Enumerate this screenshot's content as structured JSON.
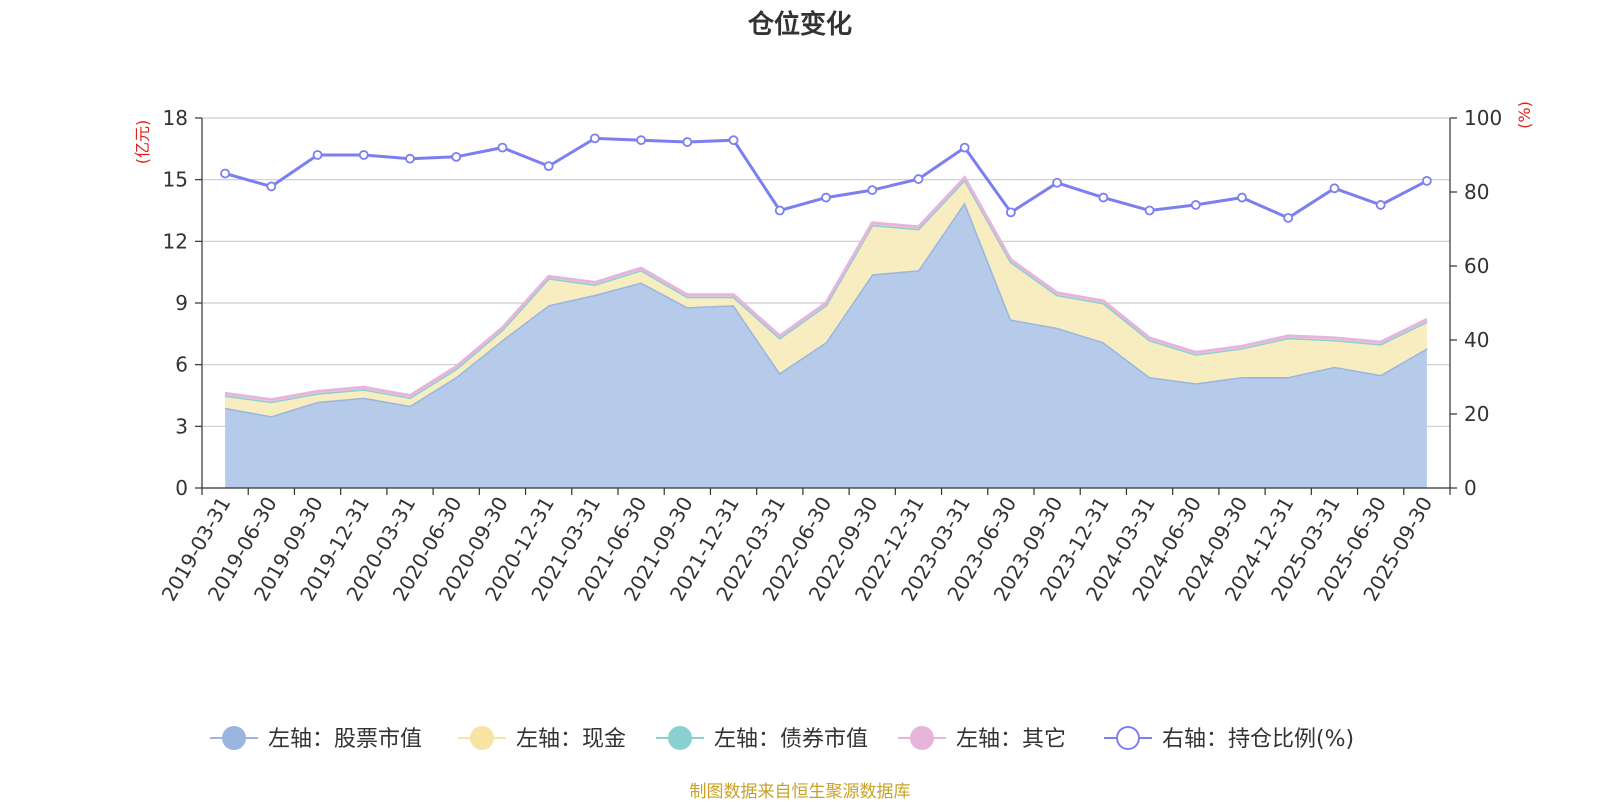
{
  "title": "仓位变化",
  "source_note": "制图数据来自恒生聚源数据库",
  "chart_data": {
    "type": "area",
    "categories": [
      "2019-03-31",
      "2019-06-30",
      "2019-09-30",
      "2019-12-31",
      "2020-03-31",
      "2020-06-30",
      "2020-09-30",
      "2020-12-31",
      "2021-03-31",
      "2021-06-30",
      "2021-09-30",
      "2021-12-31",
      "2022-03-31",
      "2022-06-30",
      "2022-09-30",
      "2022-12-31",
      "2023-03-31",
      "2023-06-30",
      "2023-09-30",
      "2023-12-31",
      "2024-03-31",
      "2024-06-30",
      "2024-09-30",
      "2024-12-31",
      "2025-03-31",
      "2025-06-30",
      "2025-09-30"
    ],
    "left_axis": {
      "label": "(亿元)",
      "ylim": [
        0,
        18
      ],
      "ticks": [
        0,
        3,
        6,
        9,
        12,
        15,
        18
      ]
    },
    "right_axis": {
      "label": "(%)",
      "ylim": [
        0,
        100
      ],
      "ticks": [
        0,
        20,
        40,
        60,
        80,
        100
      ]
    },
    "grid": true,
    "legend_position": "bottom",
    "series": [
      {
        "name": "左轴：股票市值",
        "axis": "left",
        "kind": "stacked-area",
        "color": "#9ab5e0",
        "fill": "#b6cbea",
        "values": [
          3.9,
          3.5,
          4.2,
          4.4,
          4.0,
          5.4,
          7.2,
          8.9,
          9.4,
          10.0,
          8.8,
          8.9,
          5.6,
          7.1,
          10.4,
          10.6,
          13.9,
          8.2,
          7.8,
          7.1,
          5.4,
          5.1,
          5.4,
          5.4,
          5.9,
          5.5,
          6.8
        ]
      },
      {
        "name": "左轴：现金",
        "axis": "left",
        "kind": "stacked-area",
        "color": "#f7e3a3",
        "fill": "#f8edc0",
        "values": [
          0.6,
          0.7,
          0.4,
          0.4,
          0.4,
          0.4,
          0.5,
          1.3,
          0.5,
          0.6,
          0.5,
          0.4,
          1.7,
          1.8,
          2.4,
          2.0,
          1.1,
          2.8,
          1.6,
          1.9,
          1.8,
          1.4,
          1.4,
          1.9,
          1.3,
          1.5,
          1.3
        ]
      },
      {
        "name": "左轴：债券市值",
        "axis": "left",
        "kind": "stacked-area",
        "color": "#8ad0d0",
        "fill": "#a8dede",
        "values": [
          0,
          0,
          0,
          0,
          0,
          0,
          0,
          0,
          0,
          0,
          0,
          0,
          0,
          0,
          0,
          0,
          0,
          0,
          0,
          0,
          0,
          0,
          0,
          0,
          0,
          0,
          0
        ]
      },
      {
        "name": "左轴：其它",
        "axis": "left",
        "kind": "stacked-area",
        "color": "#e7b5dc",
        "fill": "#f0cde8",
        "values": [
          0.1,
          0.1,
          0.1,
          0.1,
          0.1,
          0.1,
          0.1,
          0.1,
          0.1,
          0.1,
          0.1,
          0.1,
          0.1,
          0.1,
          0.1,
          0.1,
          0.1,
          0.1,
          0.1,
          0.1,
          0.1,
          0.1,
          0.1,
          0.1,
          0.1,
          0.1,
          0.1
        ]
      },
      {
        "name": "右轴：持仓比例(%)",
        "axis": "right",
        "kind": "line",
        "color": "#7b7ff0",
        "values": [
          85,
          81.5,
          90,
          90,
          89,
          89.5,
          92,
          87,
          94.5,
          94,
          93.5,
          94,
          75,
          78.5,
          80.5,
          83.5,
          92,
          74.5,
          82.5,
          78.5,
          75,
          76.5,
          78.5,
          73,
          81,
          76.5,
          83
        ]
      }
    ]
  }
}
